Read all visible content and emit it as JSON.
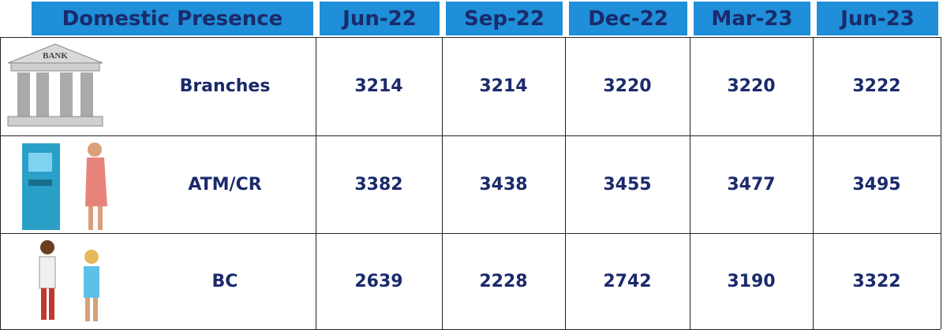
{
  "table": {
    "header": [
      "Domestic Presence",
      "Jun-22",
      "Sep-22",
      "Dec-22",
      "Mar-23",
      "Jun-23"
    ],
    "rows": [
      {
        "label": "Branches",
        "values": [
          3214,
          3214,
          3220,
          3220,
          3222
        ]
      },
      {
        "label": "ATM/CR",
        "values": [
          3382,
          3438,
          3455,
          3477,
          3495
        ]
      },
      {
        "label": "BC",
        "values": [
          2639,
          2228,
          2742,
          3190,
          3322
        ]
      }
    ],
    "icon_text": "BANK"
  }
}
